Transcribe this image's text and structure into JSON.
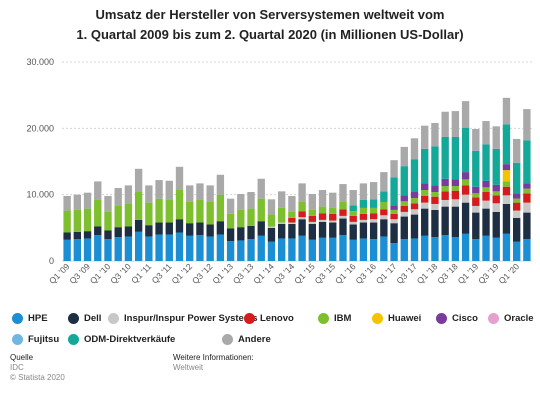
{
  "header": {
    "title_line1": "Umsatz der Hersteller von Serversystemen weltweit vom",
    "title_line2": "1. Quartal 2009 bis zum 2. Quartal 2020 (in Millionen US-Dollar)"
  },
  "footer": {
    "source_label": "Quelle",
    "source_value": "IDC",
    "copyright": "© Statista 2020",
    "info_label": "Weitere Informationen:",
    "info_value": "Weltweit"
  },
  "chart_data": {
    "type": "bar",
    "stacked": true,
    "ylim": [
      0,
      30000
    ],
    "yticks": [
      0,
      10000,
      20000,
      30000
    ],
    "ytick_labels": [
      "0",
      "10.000",
      "20.000",
      "30.000"
    ],
    "grid": true,
    "legend_position": "bottom",
    "categories": [
      "Q1 '09",
      "Q2 '09",
      "Q3 '09",
      "Q4 '09",
      "Q1 '10",
      "Q2 '10",
      "Q3 '10",
      "Q4 '10",
      "Q1 '11",
      "Q2 '11",
      "Q3 '11",
      "Q4 '11",
      "Q1 '12",
      "Q2 '12",
      "Q3 '12",
      "Q4 '12",
      "Q1 '13",
      "Q2 '13",
      "Q3 '13",
      "Q4 '13",
      "Q1 '14",
      "Q2 '14",
      "Q3 '14",
      "Q4 '14",
      "Q1 '15",
      "Q2 '15",
      "Q3 '15",
      "Q4 '15",
      "Q1 '16",
      "Q2 '16",
      "Q3 '16",
      "Q4 '16",
      "Q1 '17",
      "Q2 '17",
      "Q3 '17",
      "Q4 '17",
      "Q1 '18",
      "Q2 '18",
      "Q3 '18",
      "Q4 '18",
      "Q1 '19",
      "Q2 '19",
      "Q3 '19",
      "Q4 '19",
      "Q1 '20",
      "Q2 '20"
    ],
    "xtick_labels": [
      "Q1 '09",
      "",
      "Q3 '09",
      "",
      "Q1 '10",
      "",
      "Q3 '10",
      "",
      "Q1 '11",
      "",
      "Q3 '11",
      "",
      "Q1 '12",
      "",
      "Q3 '12",
      "",
      "Q1 '13",
      "",
      "Q3 '13",
      "",
      "Q1 '14",
      "",
      "Q3 '14",
      "",
      "Q1 '15",
      "",
      "Q3 '15",
      "",
      "Q1 '16",
      "",
      "Q3 '16",
      "",
      "Q1 '17",
      "",
      "Q3 '17",
      "",
      "Q1 '18",
      "",
      "Q3 '18",
      "",
      "Q1 '19",
      "",
      "Q3 '19",
      "",
      "Q1 '20",
      ""
    ],
    "series": [
      {
        "name": "HPE",
        "color": "#1b8ed4",
        "values": [
          3200,
          3300,
          3400,
          3900,
          3300,
          3600,
          3700,
          4400,
          3700,
          4000,
          4000,
          4300,
          3800,
          3900,
          3700,
          4000,
          3000,
          3100,
          3300,
          3800,
          2900,
          3400,
          3400,
          3800,
          3200,
          3500,
          3500,
          3900,
          3200,
          3400,
          3300,
          3700,
          2700,
          3300,
          3400,
          3800,
          3600,
          3900,
          3600,
          4100,
          3300,
          3800,
          3500,
          4100,
          2900,
          3300
        ]
      },
      {
        "name": "Dell",
        "color": "#1e2f44",
        "values": [
          1100,
          1100,
          1100,
          1300,
          1300,
          1500,
          1500,
          1800,
          1700,
          1800,
          1800,
          2000,
          1900,
          1900,
          1800,
          2000,
          1900,
          2000,
          2000,
          2200,
          2100,
          2200,
          2200,
          2500,
          2400,
          2400,
          2300,
          2500,
          2300,
          2400,
          2500,
          2600,
          3000,
          3400,
          3600,
          4100,
          4100,
          4300,
          4600,
          4700,
          4000,
          4100,
          3900,
          4500,
          3600,
          4000
        ]
      },
      {
        "name": "Inspur/Inspur Power Systems",
        "color": "#c8c8c8",
        "values": [
          0,
          0,
          0,
          0,
          0,
          0,
          0,
          0,
          0,
          0,
          0,
          0,
          0,
          0,
          0,
          0,
          0,
          0,
          0,
          0,
          200,
          200,
          200,
          300,
          300,
          300,
          300,
          400,
          400,
          400,
          500,
          600,
          600,
          700,
          800,
          900,
          900,
          1000,
          1100,
          1200,
          1000,
          1200,
          1300,
          1300,
          1100,
          1500
        ]
      },
      {
        "name": "Lenovo",
        "color": "#d51b1b",
        "values": [
          0,
          0,
          0,
          0,
          0,
          0,
          0,
          0,
          0,
          0,
          0,
          0,
          0,
          0,
          0,
          0,
          0,
          0,
          0,
          0,
          0,
          0,
          700,
          900,
          900,
          1000,
          1000,
          1000,
          900,
          900,
          900,
          900,
          800,
          900,
          900,
          1000,
          1100,
          1300,
          1300,
          1400,
          1300,
          1300,
          1200,
          1300,
          1200,
          1400
        ]
      },
      {
        "name": "IBM",
        "color": "#7dbf2e",
        "values": [
          3300,
          3300,
          3400,
          4000,
          2900,
          3300,
          3500,
          4300,
          3400,
          3600,
          3500,
          4500,
          3200,
          3400,
          3400,
          4000,
          2200,
          2600,
          2600,
          3400,
          1800,
          2200,
          1000,
          1400,
          900,
          1000,
          900,
          1200,
          700,
          900,
          800,
          1100,
          600,
          700,
          800,
          900,
          700,
          800,
          700,
          900,
          600,
          700,
          600,
          800,
          600,
          700
        ]
      },
      {
        "name": "Huawei",
        "color": "#f5c400",
        "values": [
          0,
          0,
          0,
          0,
          0,
          0,
          0,
          0,
          0,
          0,
          0,
          0,
          0,
          0,
          0,
          0,
          0,
          0,
          0,
          0,
          0,
          0,
          0,
          0,
          0,
          0,
          0,
          0,
          0,
          0,
          0,
          0,
          0,
          0,
          0,
          0,
          0,
          0,
          0,
          0,
          0,
          0,
          0,
          1700,
          0,
          0
        ]
      },
      {
        "name": "Cisco",
        "color": "#7a3c9c",
        "values": [
          0,
          0,
          0,
          0,
          0,
          0,
          0,
          0,
          0,
          0,
          0,
          0,
          0,
          0,
          0,
          0,
          0,
          0,
          0,
          0,
          0,
          0,
          0,
          0,
          0,
          0,
          0,
          0,
          0,
          0,
          0,
          0,
          700,
          900,
          900,
          1000,
          1000,
          1100,
          1000,
          1100,
          1000,
          1000,
          1000,
          900,
          800,
          800
        ]
      },
      {
        "name": "Oracle",
        "color": "#e5a0cf",
        "values": [
          0,
          0,
          0,
          0,
          0,
          0,
          0,
          0,
          0,
          0,
          0,
          0,
          0,
          0,
          0,
          0,
          0,
          0,
          0,
          0,
          0,
          0,
          0,
          0,
          0,
          0,
          0,
          0,
          0,
          0,
          0,
          0,
          0,
          0,
          0,
          0,
          0,
          0,
          0,
          0,
          0,
          0,
          0,
          0,
          0,
          0
        ]
      },
      {
        "name": "Fujitsu",
        "color": "#6fb6e0",
        "values": [
          0,
          0,
          0,
          0,
          0,
          0,
          0,
          0,
          0,
          0,
          0,
          0,
          0,
          0,
          0,
          0,
          0,
          0,
          0,
          0,
          0,
          0,
          0,
          0,
          0,
          0,
          0,
          0,
          0,
          0,
          0,
          0,
          0,
          0,
          0,
          0,
          0,
          0,
          0,
          0,
          0,
          0,
          0,
          0,
          0,
          0
        ]
      },
      {
        "name": "ODM-Direktverkäufe",
        "color": "#14a899",
        "values": [
          0,
          0,
          0,
          0,
          0,
          0,
          0,
          0,
          0,
          0,
          0,
          0,
          0,
          0,
          0,
          0,
          0,
          0,
          0,
          0,
          0,
          0,
          0,
          0,
          0,
          0,
          0,
          0,
          900,
          1200,
          1300,
          1600,
          4200,
          4400,
          4900,
          5200,
          5900,
          6300,
          6400,
          6700,
          5400,
          5500,
          5400,
          6000,
          4600,
          6500
        ]
      },
      {
        "name": "Andere",
        "color": "#a9a9a9",
        "values": [
          2200,
          2300,
          2400,
          2800,
          2300,
          2600,
          2700,
          3400,
          2600,
          2800,
          2800,
          3400,
          2500,
          2500,
          2500,
          3000,
          2300,
          2400,
          2500,
          3000,
          2300,
          2500,
          2300,
          2800,
          2400,
          2500,
          2300,
          2600,
          2300,
          2500,
          2600,
          2900,
          2600,
          2900,
          3200,
          3500,
          3500,
          3800,
          3900,
          4000,
          3300,
          3500,
          3400,
          4000,
          3600,
          4700
        ]
      }
    ]
  }
}
